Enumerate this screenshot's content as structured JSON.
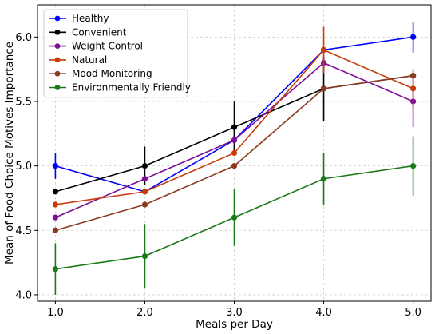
{
  "chart_data": {
    "type": "line",
    "title": "",
    "xlabel": "Meals per Day",
    "ylabel": "Mean of Food Choice Motives Importance",
    "x": [
      1.0,
      2.0,
      3.0,
      4.0,
      5.0
    ],
    "x_tick_labels": [
      "1.0",
      "2.0",
      "3.0",
      "4.0",
      "5.0"
    ],
    "y_ticks": [
      4.0,
      4.5,
      5.0,
      5.5,
      6.0
    ],
    "y_tick_labels": [
      "4.0",
      "4.5",
      "5.0",
      "5.5",
      "6.0"
    ],
    "xlim": [
      0.8,
      5.2
    ],
    "ylim": [
      3.95,
      6.25
    ],
    "grid": true,
    "legend_position": "top-left",
    "series": [
      {
        "name": "Healthy",
        "color": "#0000ff",
        "values": [
          5.0,
          4.8,
          5.2,
          5.9,
          6.0
        ],
        "errors": [
          0.1,
          0.0,
          0.1,
          0.0,
          0.12
        ]
      },
      {
        "name": "Convenient",
        "color": "#000000",
        "values": [
          4.8,
          5.0,
          5.3,
          5.6,
          5.7
        ],
        "errors": [
          0.0,
          0.15,
          0.2,
          0.25,
          0.0
        ]
      },
      {
        "name": "Weight Control",
        "color": "#7f0f98",
        "values": [
          4.6,
          4.9,
          5.2,
          5.8,
          5.5
        ],
        "errors": [
          0.0,
          0.0,
          0.0,
          0.0,
          0.2
        ]
      },
      {
        "name": "Natural",
        "color": "#c83c0c",
        "values": [
          4.7,
          4.8,
          5.1,
          5.9,
          5.6
        ],
        "errors": [
          0.0,
          0.0,
          0.0,
          0.18,
          0.15
        ]
      },
      {
        "name": "Mood Monitoring",
        "color": "#8b3a1e",
        "values": [
          4.5,
          4.7,
          5.0,
          5.6,
          5.7
        ],
        "errors": [
          0.0,
          0.0,
          0.0,
          0.0,
          0.0
        ]
      },
      {
        "name": "Environmentally Friendly",
        "color": "#1a7a1a",
        "values": [
          4.2,
          4.3,
          4.6,
          4.9,
          5.0
        ],
        "errors": [
          0.2,
          0.25,
          0.22,
          0.2,
          0.23
        ]
      }
    ]
  }
}
